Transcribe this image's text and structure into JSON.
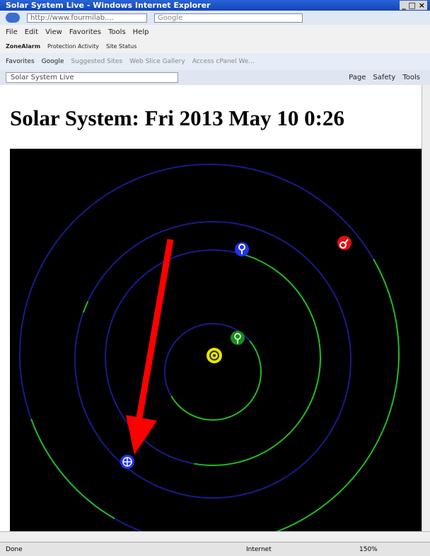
{
  "window": {
    "title": "Solar System Live - Windows Internet Explorer"
  },
  "address_bar": {
    "url": "http://www.fourmilab....",
    "search": "Google"
  },
  "menu": [
    "File",
    "Edit",
    "View",
    "Favorites",
    "Tools",
    "Help"
  ],
  "toolbar": [
    "ZoneAlarm",
    "Protection Activity",
    "Site Status"
  ],
  "favorites_bar": [
    "Favorites",
    "Google",
    "Suggested Sites",
    "Web Slice Gallery",
    "Access cPanel We..."
  ],
  "tab": {
    "title": "Solar System Live"
  },
  "command_bar": [
    "Page",
    "Safety",
    "Tools"
  ],
  "page": {
    "heading": "Solar System: Fri 2013 May 10 0:26"
  },
  "status_bar": {
    "status": "Done",
    "zone": "Internet",
    "zoom": "150%"
  }
}
